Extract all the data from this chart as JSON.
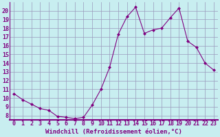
{
  "x": [
    0,
    1,
    2,
    3,
    4,
    5,
    6,
    7,
    8,
    9,
    10,
    11,
    12,
    13,
    14,
    15,
    16,
    17,
    18,
    19,
    20,
    21,
    22,
    23
  ],
  "y": [
    10.5,
    9.8,
    9.3,
    8.8,
    8.6,
    7.9,
    7.8,
    7.65,
    7.8,
    9.2,
    11.0,
    13.5,
    17.3,
    19.3,
    20.4,
    17.4,
    17.8,
    18.0,
    19.2,
    20.3,
    16.5,
    15.8,
    14.0,
    13.2
  ],
  "line_color": "#800080",
  "marker": "D",
  "marker_size": 2,
  "background_color": "#c8eef0",
  "plot_bg_color": "#c8eef0",
  "grid_color": "#9999bb",
  "xlabel": "Windchill (Refroidissement éolien,°C)",
  "xlabel_color": "#800080",
  "tick_color": "#800080",
  "spine_color": "#800080",
  "ylim": [
    7.5,
    21.0
  ],
  "xlim": [
    -0.5,
    23.5
  ],
  "yticks": [
    8,
    9,
    10,
    11,
    12,
    13,
    14,
    15,
    16,
    17,
    18,
    19,
    20
  ],
  "xticks": [
    0,
    1,
    2,
    3,
    4,
    5,
    6,
    7,
    8,
    9,
    10,
    11,
    12,
    13,
    14,
    15,
    16,
    17,
    18,
    19,
    20,
    21,
    22,
    23
  ],
  "tick_fontsize": 6,
  "xlabel_fontsize": 6.5
}
